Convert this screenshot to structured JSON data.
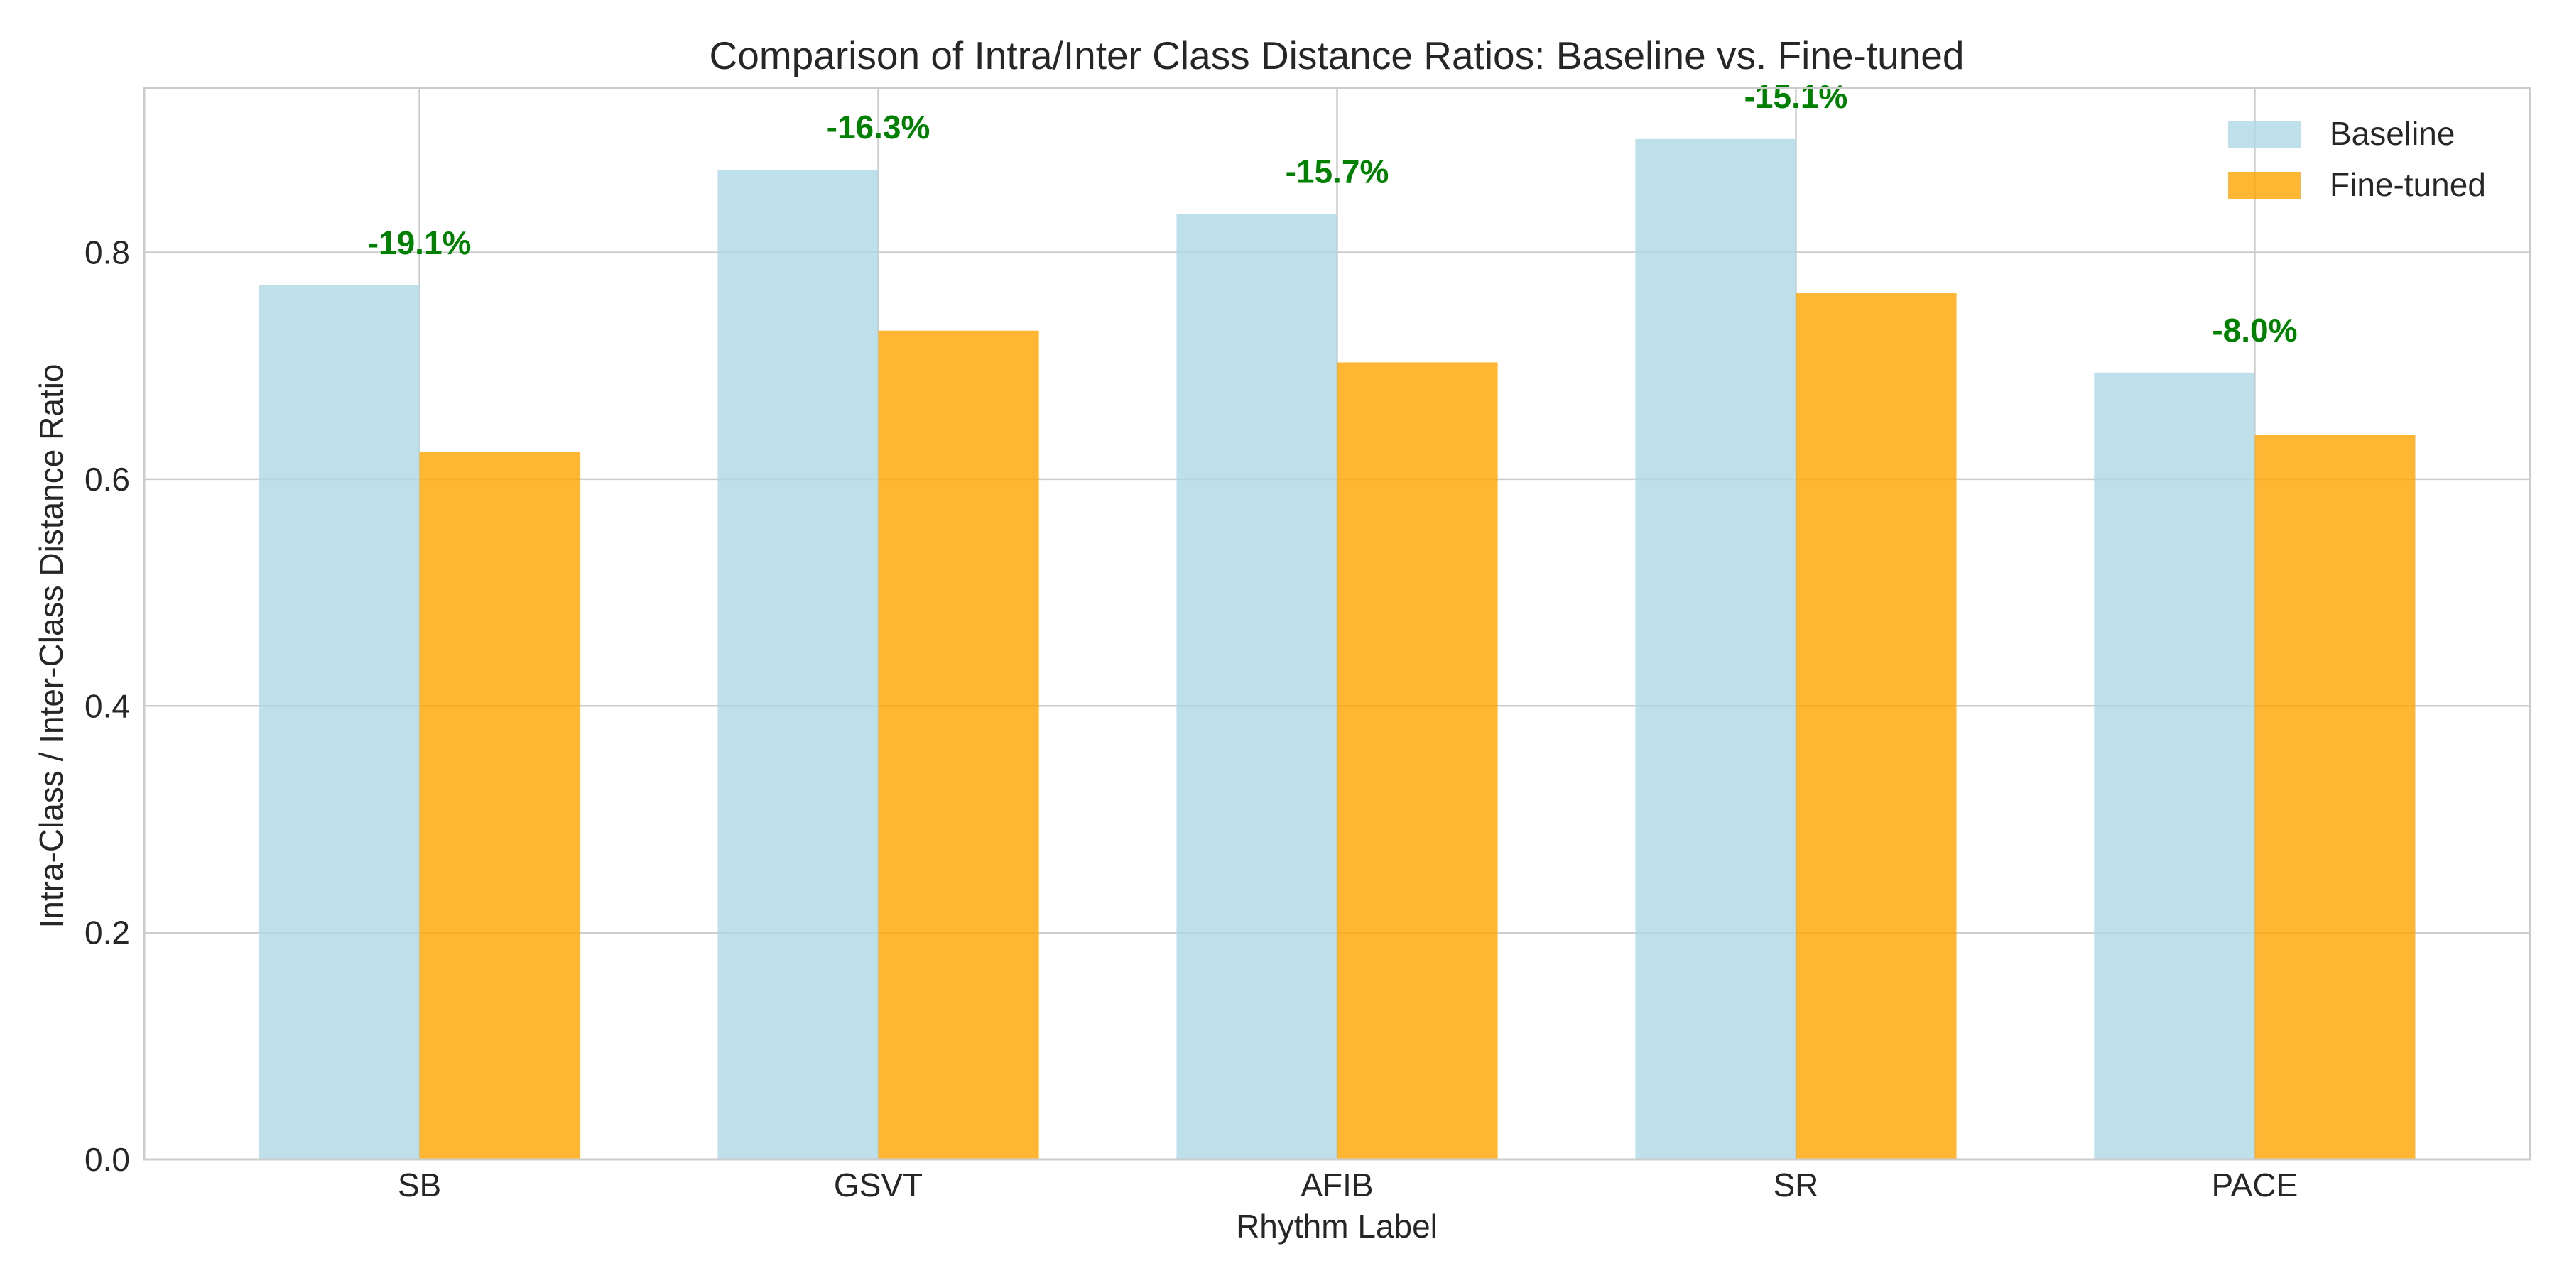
{
  "chart_data": {
    "type": "bar",
    "title": "Comparison of Intra/Inter Class Distance Ratios: Baseline vs. Fine-tuned",
    "xlabel": "Rhythm Label",
    "ylabel": "Intra-Class / Inter-Class Distance Ratio",
    "categories": [
      "SB",
      "GSVT",
      "AFIB",
      "SR",
      "PACE"
    ],
    "series": [
      {
        "name": "Baseline",
        "color": "#add8e6",
        "values": [
          0.771,
          0.873,
          0.834,
          0.9,
          0.694
        ]
      },
      {
        "name": "Fine-tuned",
        "color": "#ffa500",
        "values": [
          0.624,
          0.731,
          0.703,
          0.764,
          0.639
        ]
      }
    ],
    "annotations": [
      "-19.1%",
      "-16.3%",
      "-15.7%",
      "-15.1%",
      "-8.0%"
    ],
    "annotation_color": "#008000",
    "ylim": [
      0,
      0.945
    ],
    "yticks": [
      0.0,
      0.2,
      0.4,
      0.6,
      0.8
    ],
    "ytick_labels": [
      "0.0",
      "0.2",
      "0.4",
      "0.6",
      "0.8"
    ],
    "grid": true,
    "legend_position": "top-right"
  }
}
